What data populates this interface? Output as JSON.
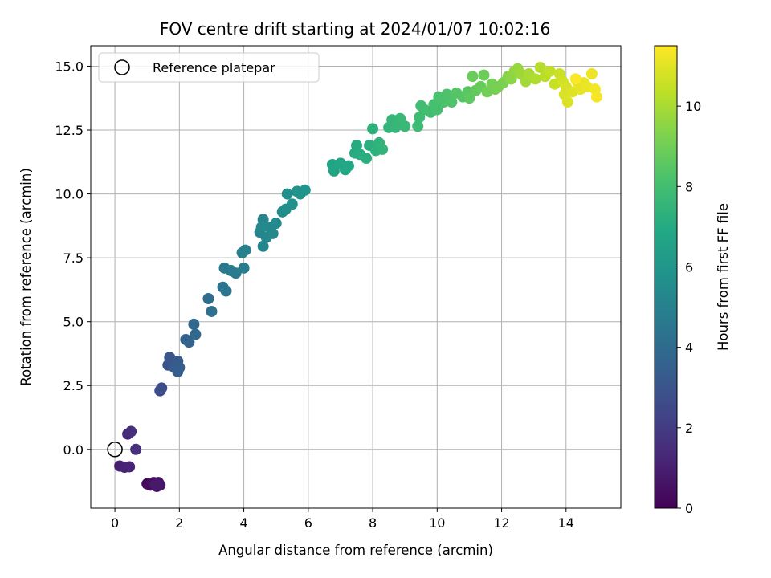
{
  "chart_data": {
    "type": "scatter",
    "title": "FOV centre drift starting at 2024/01/07 10:02:16",
    "xlabel": "Angular distance from reference (arcmin)",
    "ylabel": "Rotation from reference (arcmin)",
    "xlim": [
      -0.75,
      15.7
    ],
    "ylim": [
      -2.3,
      15.8
    ],
    "x_ticks": [
      0,
      2,
      4,
      6,
      8,
      10,
      12,
      14
    ],
    "y_ticks": [
      0.0,
      2.5,
      5.0,
      7.5,
      10.0,
      12.5,
      15.0
    ],
    "x_tick_labels": [
      "0",
      "2",
      "4",
      "6",
      "8",
      "10",
      "12",
      "14"
    ],
    "y_tick_labels": [
      "0.0",
      "2.5",
      "5.0",
      "7.5",
      "10.0",
      "12.5",
      "15.0"
    ],
    "grid": true,
    "legend": {
      "placement": "top-left",
      "entries": [
        "Reference platepar"
      ]
    },
    "colorbar": {
      "label": "Hours from first FF file",
      "range": [
        0,
        11.5
      ],
      "ticks": [
        0,
        2,
        4,
        6,
        8,
        10
      ],
      "tick_labels": [
        "0",
        "2",
        "4",
        "6",
        "8",
        "10"
      ],
      "colormap": "viridis"
    },
    "reference_point": {
      "x": 0,
      "y": 0
    },
    "series": [
      {
        "points": [
          [
            1.0,
            -1.35,
            0.2
          ],
          [
            1.1,
            -1.4,
            0.3
          ],
          [
            1.2,
            -1.3,
            0.4
          ],
          [
            1.3,
            -1.45,
            0.5
          ],
          [
            1.35,
            -1.3,
            0.6
          ],
          [
            1.4,
            -1.4,
            0.7
          ],
          [
            1.25,
            -1.38,
            0.8
          ],
          [
            0.15,
            -0.65,
            1.0
          ],
          [
            0.3,
            -0.7,
            1.1
          ],
          [
            0.45,
            -0.68,
            1.2
          ],
          [
            0.4,
            0.6,
            1.4
          ],
          [
            0.5,
            0.7,
            1.5
          ],
          [
            0.65,
            0.0,
            1.6
          ],
          [
            1.4,
            2.3,
            2.6
          ],
          [
            1.45,
            2.4,
            2.7
          ],
          [
            1.65,
            3.3,
            3.0
          ],
          [
            1.7,
            3.6,
            3.1
          ],
          [
            1.85,
            3.2,
            3.2
          ],
          [
            1.95,
            3.45,
            3.3
          ],
          [
            2.0,
            3.2,
            3.35
          ],
          [
            1.95,
            3.05,
            3.4
          ],
          [
            2.2,
            4.3,
            3.6
          ],
          [
            2.3,
            4.2,
            3.7
          ],
          [
            2.45,
            4.9,
            3.8
          ],
          [
            2.5,
            4.5,
            3.9
          ],
          [
            2.9,
            5.9,
            4.1
          ],
          [
            3.0,
            5.4,
            4.2
          ],
          [
            3.35,
            6.35,
            4.4
          ],
          [
            3.45,
            6.2,
            4.5
          ],
          [
            3.4,
            7.1,
            4.6
          ],
          [
            3.6,
            7.0,
            4.7
          ],
          [
            3.75,
            6.9,
            4.75
          ],
          [
            4.0,
            7.1,
            4.8
          ],
          [
            3.95,
            7.7,
            4.9
          ],
          [
            4.05,
            7.8,
            5.0
          ],
          [
            4.5,
            8.5,
            5.1
          ],
          [
            4.6,
            9.0,
            5.15
          ],
          [
            4.6,
            7.95,
            5.2
          ],
          [
            4.7,
            8.3,
            5.25
          ],
          [
            4.8,
            8.7,
            5.3
          ],
          [
            4.9,
            8.45,
            5.35
          ],
          [
            4.55,
            8.7,
            5.4
          ],
          [
            5.0,
            8.85,
            5.45
          ],
          [
            5.2,
            9.3,
            5.55
          ],
          [
            5.3,
            9.4,
            5.6
          ],
          [
            5.35,
            10.0,
            5.7
          ],
          [
            5.5,
            9.6,
            5.75
          ],
          [
            5.65,
            10.1,
            5.8
          ],
          [
            5.75,
            10.0,
            5.85
          ],
          [
            5.9,
            10.15,
            5.9
          ],
          [
            6.75,
            11.15,
            6.7
          ],
          [
            6.8,
            10.9,
            6.75
          ],
          [
            7.0,
            11.2,
            6.8
          ],
          [
            7.15,
            10.95,
            6.85
          ],
          [
            7.25,
            11.1,
            6.9
          ],
          [
            7.45,
            11.6,
            7.0
          ],
          [
            7.5,
            11.9,
            7.05
          ],
          [
            7.6,
            11.55,
            7.1
          ],
          [
            7.8,
            11.4,
            7.2
          ],
          [
            7.9,
            11.9,
            7.25
          ],
          [
            8.0,
            12.55,
            7.3
          ],
          [
            8.1,
            11.7,
            7.35
          ],
          [
            8.2,
            12.0,
            7.4
          ],
          [
            8.3,
            11.75,
            7.45
          ],
          [
            8.5,
            12.6,
            7.5
          ],
          [
            8.6,
            12.9,
            7.55
          ],
          [
            8.7,
            12.6,
            7.6
          ],
          [
            8.85,
            12.95,
            7.65
          ],
          [
            9.0,
            12.65,
            7.7
          ],
          [
            9.4,
            12.65,
            7.8
          ],
          [
            9.45,
            13.0,
            7.85
          ],
          [
            9.5,
            13.45,
            7.9
          ],
          [
            9.6,
            13.3,
            7.95
          ],
          [
            9.8,
            13.2,
            8.0
          ],
          [
            9.9,
            13.5,
            8.05
          ],
          [
            10.0,
            13.3,
            8.1
          ],
          [
            10.05,
            13.8,
            8.15
          ],
          [
            10.2,
            13.6,
            8.2
          ],
          [
            10.3,
            13.9,
            8.25
          ],
          [
            10.45,
            13.6,
            8.3
          ],
          [
            10.6,
            13.95,
            8.4
          ],
          [
            10.8,
            13.8,
            8.45
          ],
          [
            10.95,
            14.0,
            8.5
          ],
          [
            11.0,
            13.75,
            8.6
          ],
          [
            11.2,
            14.05,
            8.7
          ],
          [
            11.35,
            14.2,
            8.8
          ],
          [
            11.1,
            14.6,
            8.85
          ],
          [
            11.45,
            14.65,
            8.9
          ],
          [
            11.55,
            14.0,
            9.0
          ],
          [
            11.7,
            14.3,
            9.05
          ],
          [
            11.8,
            14.1,
            9.1
          ],
          [
            11.9,
            14.2,
            9.15
          ],
          [
            12.05,
            14.35,
            9.2
          ],
          [
            12.2,
            14.6,
            9.4
          ],
          [
            12.3,
            14.5,
            9.5
          ],
          [
            12.4,
            14.8,
            9.6
          ],
          [
            12.5,
            14.9,
            9.7
          ],
          [
            12.6,
            14.7,
            9.8
          ],
          [
            12.75,
            14.4,
            9.9
          ],
          [
            12.85,
            14.7,
            10.0
          ],
          [
            13.05,
            14.5,
            10.1
          ],
          [
            13.2,
            14.95,
            10.2
          ],
          [
            13.35,
            14.6,
            10.3
          ],
          [
            13.5,
            14.8,
            10.4
          ],
          [
            13.65,
            14.3,
            10.5
          ],
          [
            13.8,
            14.7,
            10.6
          ],
          [
            13.9,
            14.4,
            10.7
          ],
          [
            14.0,
            14.2,
            10.8
          ],
          [
            13.95,
            13.9,
            10.85
          ],
          [
            14.05,
            13.6,
            10.9
          ],
          [
            14.2,
            14.0,
            10.95
          ],
          [
            14.35,
            14.4,
            11.0
          ],
          [
            14.45,
            14.1,
            11.05
          ],
          [
            14.55,
            14.35,
            11.1
          ],
          [
            14.65,
            14.2,
            11.15
          ],
          [
            14.8,
            14.7,
            11.2
          ],
          [
            14.9,
            14.1,
            11.3
          ],
          [
            14.95,
            13.8,
            11.4
          ],
          [
            14.3,
            14.5,
            11.45
          ]
        ]
      }
    ]
  }
}
